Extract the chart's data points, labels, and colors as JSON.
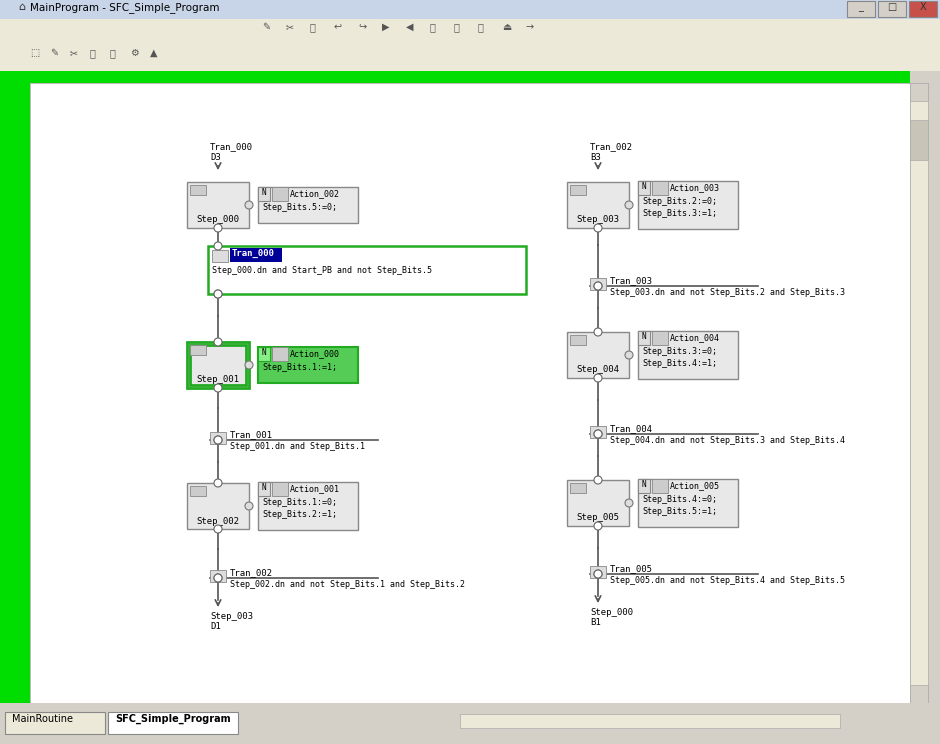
{
  "fig_w": 9.4,
  "fig_h": 7.44,
  "dpi": 100,
  "bg_color": "#d4d0c8",
  "titlebar_color": "#0a246a",
  "titlebar_text_color": "#ffffff",
  "toolbar_color": "#ece9d8",
  "canvas_color": "#ffffff",
  "green_bar_color": "#00cc00",
  "left_bar_color": "#00dd00",
  "scrollbar_color": "#ece9d8",
  "title": "MainProgram - SFC_Simple_Program",
  "tab1_label": "MainRoutine",
  "tab2_label": "SFC_Simple_Program",
  "left_chain_entry_label": "Tran_000",
  "left_chain_entry_sub": "D3",
  "left_chain_exit_label": "Step_003",
  "left_chain_exit_sub": "D1",
  "right_chain_entry_label": "Tran_002",
  "right_chain_entry_sub": "B3",
  "right_chain_exit_label": "Step_000",
  "right_chain_exit_sub": "B1"
}
